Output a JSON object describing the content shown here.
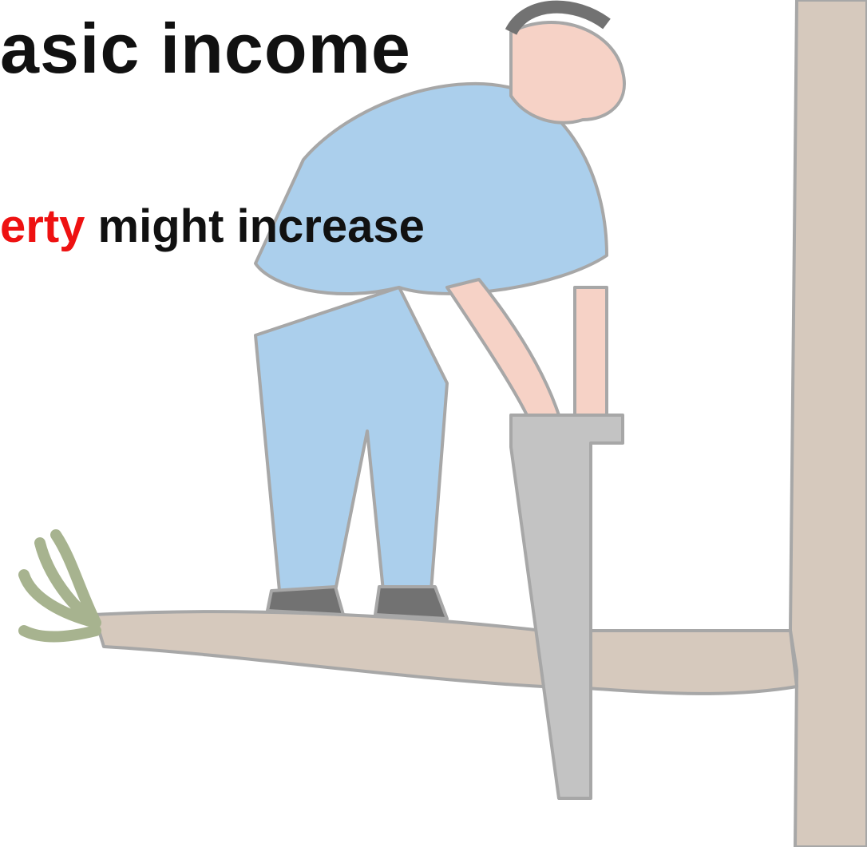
{
  "title": "asic income",
  "line": {
    "highlight": "erty",
    "text": "might increase"
  }
}
